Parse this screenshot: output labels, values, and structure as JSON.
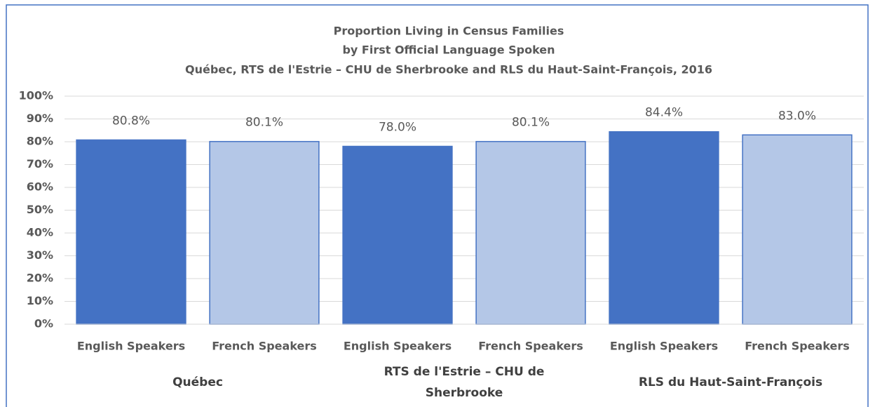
{
  "chart_data": {
    "type": "bar",
    "title": [
      "Proportion Living in Census Families",
      "by First Official Language Spoken",
      "Québec, RTS de l'Estrie – CHU de Sherbrooke and RLS du Haut-Saint-François, 2016"
    ],
    "groups": [
      {
        "name": "Québec",
        "categories": [
          "English Speakers",
          "French Speakers"
        ],
        "values": [
          80.8,
          80.1
        ],
        "value_labels": [
          "80.8%",
          "80.1%"
        ]
      },
      {
        "name": "RTS de l'Estrie – CHU de Sherbrooke",
        "categories": [
          "English Speakers",
          "French Speakers"
        ],
        "values": [
          78.0,
          80.1
        ],
        "value_labels": [
          "78.0%",
          "80.1%"
        ]
      },
      {
        "name": "RLS du Haut-Saint-François",
        "categories": [
          "English Speakers",
          "French Speakers"
        ],
        "values": [
          84.4,
          83.0
        ],
        "value_labels": [
          "84.4%",
          "83.0%"
        ]
      }
    ],
    "colors": [
      "#4472c4",
      "#b4c7e7"
    ],
    "ylim": [
      0,
      100
    ],
    "yticks": [
      {
        "value": 0,
        "label": "0%"
      },
      {
        "value": 10,
        "label": "10%"
      },
      {
        "value": 20,
        "label": "20%"
      },
      {
        "value": 30,
        "label": "30%"
      },
      {
        "value": 40,
        "label": "40%"
      },
      {
        "value": 50,
        "label": "50%"
      },
      {
        "value": 60,
        "label": "60%"
      },
      {
        "value": 70,
        "label": "70%"
      },
      {
        "value": 80,
        "label": "80%"
      },
      {
        "value": 90,
        "label": "90%"
      },
      {
        "value": 100,
        "label": "100%"
      }
    ],
    "grid": true
  }
}
